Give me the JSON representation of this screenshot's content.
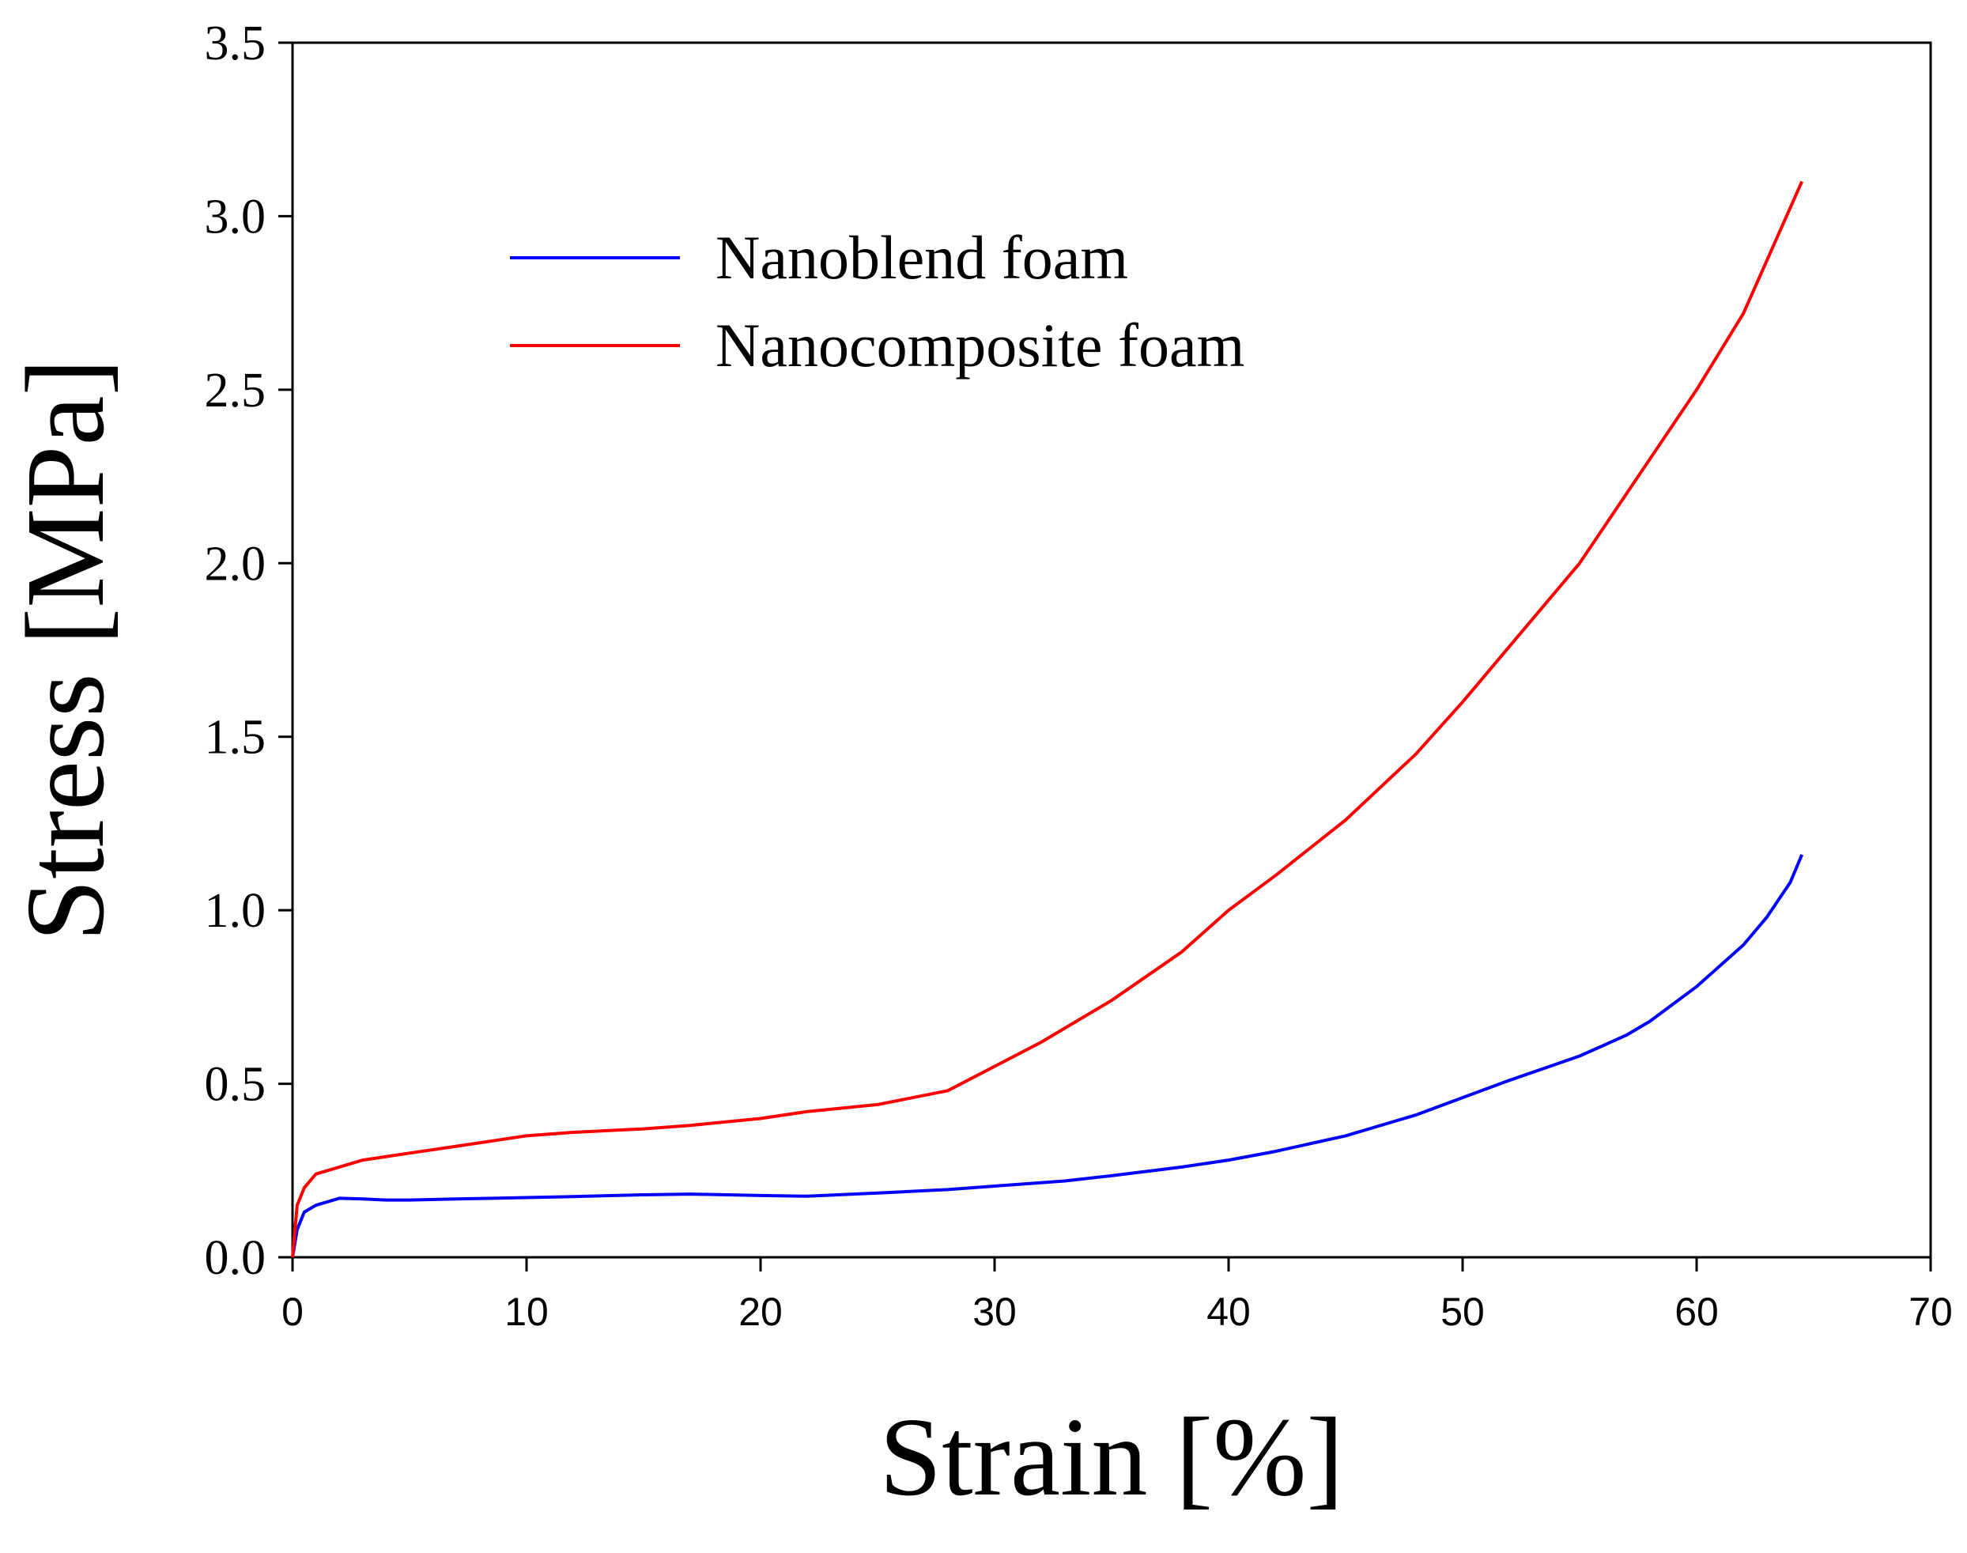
{
  "chart_data": {
    "type": "line",
    "title": "",
    "xlabel": "Strain [%]",
    "ylabel": "Stress [MPa]",
    "xlim": [
      0,
      70
    ],
    "ylim": [
      0,
      3.5
    ],
    "x_ticks": [
      "0",
      "10",
      "20",
      "30",
      "40",
      "50",
      "60",
      "70"
    ],
    "y_ticks": [
      "0.0",
      "0.5",
      "1.0",
      "1.5",
      "2.0",
      "2.5",
      "3.0",
      "3.5"
    ],
    "grid": false,
    "legend_position": "upper-left inside",
    "series": [
      {
        "name": "Nanoblend foam",
        "color": "#0000ff",
        "x": [
          0,
          0.2,
          0.5,
          1,
          2,
          3,
          4,
          5,
          7,
          10,
          12,
          15,
          17,
          20,
          22,
          25,
          28,
          30,
          33,
          35,
          38,
          40,
          42,
          45,
          48,
          50,
          52,
          55,
          57,
          58,
          60,
          62,
          63,
          64,
          64.5
        ],
        "y": [
          0,
          0.08,
          0.13,
          0.15,
          0.17,
          0.168,
          0.165,
          0.165,
          0.168,
          0.172,
          0.175,
          0.18,
          0.182,
          0.178,
          0.176,
          0.185,
          0.195,
          0.205,
          0.22,
          0.235,
          0.26,
          0.28,
          0.305,
          0.35,
          0.41,
          0.46,
          0.51,
          0.58,
          0.64,
          0.68,
          0.78,
          0.9,
          0.98,
          1.08,
          1.16
        ]
      },
      {
        "name": "Nanocomposite foam",
        "color": "#ff0000",
        "x": [
          0,
          0.2,
          0.5,
          1,
          2,
          3,
          5,
          7,
          10,
          12,
          15,
          17,
          20,
          22,
          25,
          28,
          30,
          32,
          35,
          38,
          40,
          42,
          45,
          48,
          50,
          52,
          55,
          58,
          60,
          62,
          64.5
        ],
        "y": [
          0,
          0.15,
          0.2,
          0.24,
          0.26,
          0.28,
          0.3,
          0.32,
          0.35,
          0.36,
          0.37,
          0.38,
          0.4,
          0.42,
          0.44,
          0.48,
          0.55,
          0.62,
          0.74,
          0.88,
          1.0,
          1.1,
          1.26,
          1.45,
          1.6,
          1.76,
          2.0,
          2.3,
          2.5,
          2.72,
          3.1
        ]
      }
    ]
  }
}
